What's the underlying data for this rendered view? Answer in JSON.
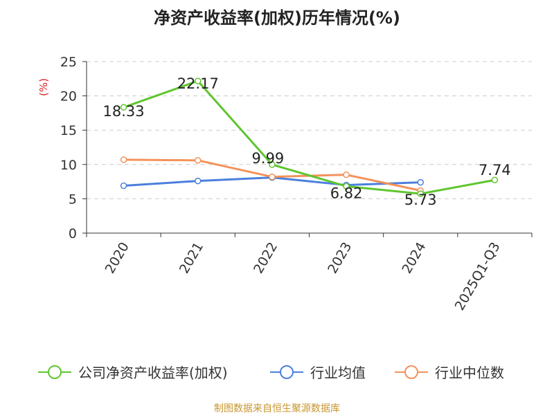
{
  "chart_data": {
    "type": "line",
    "title": "净资产收益率(加权)历年情况(%)",
    "ylabel": "(%)",
    "xlabel": "",
    "ylim": [
      0,
      25
    ],
    "yticks": [
      0,
      5,
      10,
      15,
      20,
      25
    ],
    "categories": [
      "2020",
      "2021",
      "2022",
      "2023",
      "2024",
      "2025Q1-Q3"
    ],
    "grid": true,
    "legend_position": "bottom",
    "series": [
      {
        "name": "公司净资产收益率(加权)",
        "color": "#5fc52e",
        "values": [
          18.33,
          22.17,
          9.99,
          6.82,
          5.73,
          7.74
        ],
        "show_labels": true
      },
      {
        "name": "行业均值",
        "color": "#4a7fdc",
        "values": [
          6.9,
          7.6,
          8.1,
          7.0,
          7.4,
          null
        ],
        "show_labels": false
      },
      {
        "name": "行业中位数",
        "color": "#f4925a",
        "values": [
          10.7,
          10.6,
          8.2,
          8.5,
          6.2,
          null
        ],
        "show_labels": false
      }
    ]
  },
  "footer": {
    "source": "制图数据来自恒生聚源数据库"
  }
}
